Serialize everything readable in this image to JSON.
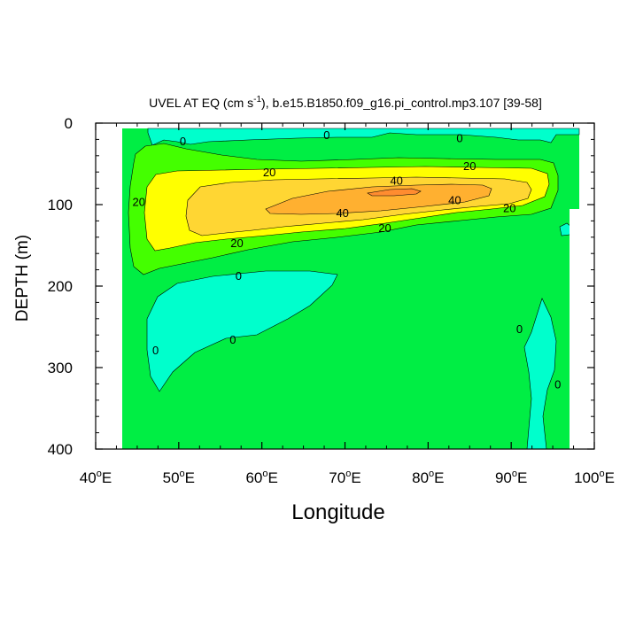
{
  "chart_data": {
    "type": "contour",
    "title_main": "UVEL AT EQ (cm s",
    "title_exp": "-1",
    "title_rest": "), b.e15.B1850.f09_g16.pi_control.mp3.107 [39-58]",
    "xlabel": "Longitude",
    "ylabel": "DEPTH (m)",
    "xlim": [
      40,
      100
    ],
    "ylim": [
      400,
      0
    ],
    "x_ticks": [
      40,
      50,
      60,
      70,
      80,
      90,
      100
    ],
    "x_tick_labels": [
      "40",
      "50",
      "60",
      "70",
      "80",
      "90",
      "100"
    ],
    "x_tick_suffix": "E",
    "y_ticks": [
      0,
      100,
      200,
      300,
      400
    ],
    "y_tick_labels": [
      "0",
      "100",
      "200",
      "300",
      "400"
    ],
    "contour_levels": [
      0,
      20,
      40
    ],
    "fill_colors": {
      "below_0": "#00ffcc",
      "0_to_20": "#00ee44",
      "20_to_30": "#44ff00",
      "30_to_40": "#ffff00",
      "40_to_50": "#ffd633",
      "above_50": "#ffb030",
      "max_core": "#ff8c30",
      "missing": "#ffffff"
    },
    "contour_labels": [
      {
        "text": "0",
        "lon": 50.5,
        "depth": 22
      },
      {
        "text": "0",
        "lon": 67.8,
        "depth": 14
      },
      {
        "text": "0",
        "lon": 83.8,
        "depth": 18
      },
      {
        "text": "20",
        "lon": 60.9,
        "depth": 60
      },
      {
        "text": "20",
        "lon": 85.0,
        "depth": 52
      },
      {
        "text": "20",
        "lon": 45.2,
        "depth": 96
      },
      {
        "text": "20",
        "lon": 89.8,
        "depth": 104
      },
      {
        "text": "20",
        "lon": 57.0,
        "depth": 147
      },
      {
        "text": "20",
        "lon": 74.8,
        "depth": 128
      },
      {
        "text": "40",
        "lon": 76.2,
        "depth": 70
      },
      {
        "text": "40",
        "lon": 83.2,
        "depth": 94
      },
      {
        "text": "40",
        "lon": 69.7,
        "depth": 110
      },
      {
        "text": "0",
        "lon": 57.2,
        "depth": 187
      },
      {
        "text": "0",
        "lon": 56.5,
        "depth": 265
      },
      {
        "text": "0",
        "lon": 47.2,
        "depth": 278
      },
      {
        "text": "0",
        "lon": 91.0,
        "depth": 252
      },
      {
        "text": "0",
        "lon": 95.6,
        "depth": 320
      }
    ]
  }
}
